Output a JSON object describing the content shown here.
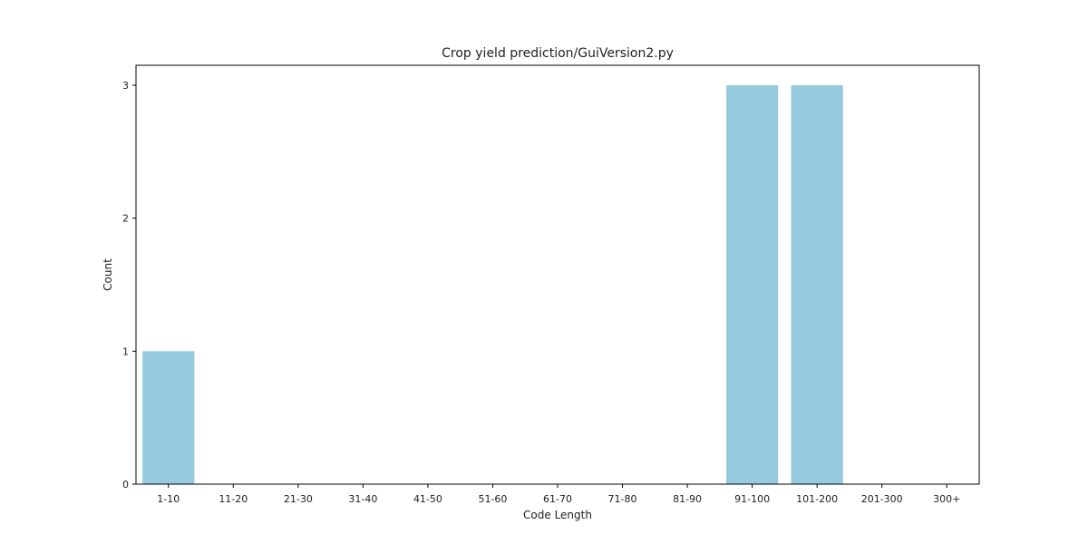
{
  "chart_data": {
    "type": "bar",
    "title": "Crop yield prediction/GuiVersion2.py",
    "xlabel": "Code Length",
    "ylabel": "Count",
    "categories": [
      "1-10",
      "11-20",
      "21-30",
      "31-40",
      "41-50",
      "51-60",
      "61-70",
      "71-80",
      "81-90",
      "91-100",
      "101-200",
      "201-300",
      "300+"
    ],
    "values": [
      1,
      0,
      0,
      0,
      0,
      0,
      0,
      0,
      0,
      3,
      3,
      0,
      0
    ],
    "yticks": [
      0,
      1,
      2,
      3
    ],
    "ylim": [
      0,
      3.15
    ],
    "bar_color": "#96cade",
    "grid": false,
    "legend": "none"
  }
}
